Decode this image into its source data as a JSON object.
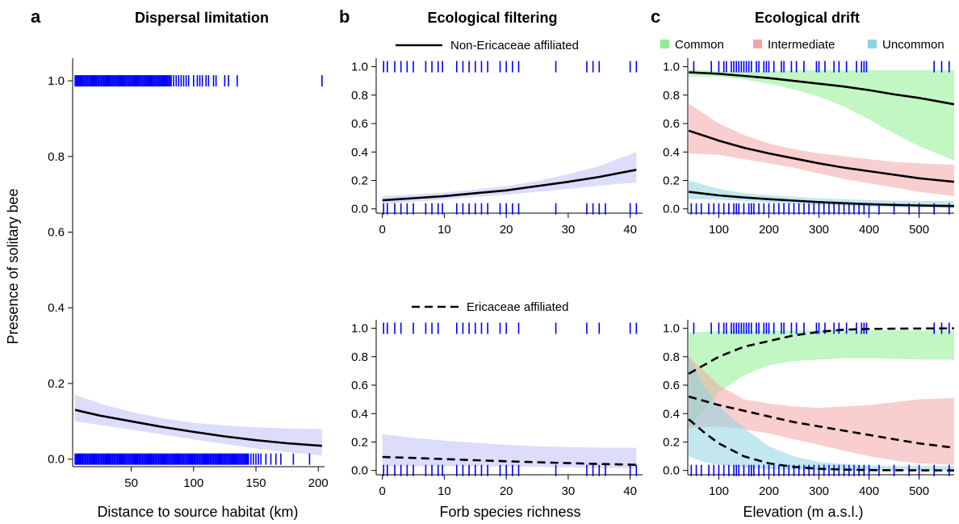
{
  "chart_data": [
    {
      "panel": "a",
      "type": "line",
      "title": "Dispersal limitation",
      "xlabel": "Distance to source habitat (km)",
      "ylabel": "Presence of solitary bee",
      "xlim": [
        3,
        205
      ],
      "ylim": [
        -0.02,
        1.06
      ],
      "xticks": [
        "50",
        "100",
        "150",
        "200"
      ],
      "yticks": [
        "0.0",
        "0.2",
        "0.4",
        "0.6",
        "0.8",
        "1.0"
      ],
      "series": [
        {
          "style": "solid",
          "x": [
            5,
            25,
            50,
            75,
            100,
            125,
            150,
            175,
            203
          ],
          "y": [
            0.13,
            0.115,
            0.1,
            0.085,
            0.072,
            0.06,
            0.05,
            0.042,
            0.035
          ],
          "ci_low": [
            0.1,
            0.09,
            0.078,
            0.065,
            0.052,
            0.04,
            0.028,
            0.018,
            0.01
          ],
          "ci_high": [
            0.17,
            0.147,
            0.125,
            0.108,
            0.096,
            0.089,
            0.084,
            0.081,
            0.08
          ]
        }
      ],
      "rug_top": [
        5,
        6,
        7,
        8,
        9,
        10,
        11,
        12,
        13,
        14,
        15,
        16,
        17,
        18,
        19,
        20,
        21,
        22,
        23,
        24,
        25,
        26,
        27,
        28,
        29,
        30,
        31,
        32,
        33,
        34,
        35,
        36,
        37,
        38,
        39,
        40,
        41,
        42,
        43,
        44,
        45,
        46,
        47,
        48,
        49,
        50,
        51,
        52,
        53,
        54,
        55,
        56,
        57,
        58,
        59,
        60,
        61,
        62,
        63,
        64,
        65,
        66,
        67,
        68,
        69,
        70,
        71,
        72,
        73,
        74,
        75,
        76,
        77,
        78,
        79,
        80,
        81,
        82,
        84,
        86,
        88,
        90,
        92,
        94,
        96,
        100,
        103,
        105,
        107,
        110,
        112,
        116,
        118,
        125,
        128,
        135,
        203
      ],
      "rug_bottom": [
        5,
        6,
        7,
        8,
        9,
        10,
        11,
        12,
        13,
        14,
        15,
        16,
        17,
        18,
        19,
        20,
        21,
        22,
        23,
        24,
        25,
        26,
        27,
        28,
        29,
        30,
        31,
        32,
        33,
        34,
        35,
        36,
        37,
        38,
        39,
        40,
        41,
        42,
        43,
        44,
        45,
        46,
        47,
        48,
        49,
        50,
        51,
        52,
        53,
        54,
        55,
        56,
        57,
        58,
        59,
        60,
        61,
        62,
        63,
        64,
        65,
        66,
        67,
        68,
        69,
        70,
        71,
        72,
        73,
        74,
        75,
        76,
        77,
        78,
        79,
        80,
        81,
        82,
        83,
        84,
        85,
        86,
        87,
        88,
        89,
        90,
        91,
        92,
        93,
        94,
        95,
        96,
        97,
        98,
        99,
        100,
        101,
        102,
        103,
        104,
        105,
        106,
        107,
        108,
        109,
        110,
        111,
        112,
        113,
        114,
        115,
        116,
        117,
        118,
        119,
        120,
        121,
        122,
        123,
        124,
        125,
        126,
        127,
        128,
        129,
        130,
        131,
        132,
        133,
        134,
        135,
        136,
        137,
        138,
        139,
        140,
        141,
        142,
        143,
        144,
        146,
        148,
        150,
        152,
        154,
        158,
        162,
        166,
        170,
        180,
        193
      ]
    },
    {
      "panel": "b",
      "type": "line",
      "title": "Ecological filtering",
      "legend": "Non-Ericaceae affiliated",
      "xlabel": "",
      "ylabel": "",
      "xlim": [
        -1,
        42
      ],
      "ylim": [
        -0.03,
        1.06
      ],
      "xticks": [
        "0",
        "10",
        "20",
        "30",
        "40"
      ],
      "yticks": [
        "0.0",
        "0.2",
        "0.4",
        "0.6",
        "0.8",
        "1.0"
      ],
      "series": [
        {
          "style": "solid",
          "x": [
            0,
            5,
            10,
            15,
            20,
            25,
            30,
            35,
            41
          ],
          "y": [
            0.06,
            0.075,
            0.09,
            0.11,
            0.13,
            0.16,
            0.19,
            0.225,
            0.275
          ],
          "ci_low": [
            0.035,
            0.05,
            0.065,
            0.085,
            0.1,
            0.12,
            0.14,
            0.165,
            0.185
          ],
          "ci_high": [
            0.09,
            0.1,
            0.115,
            0.135,
            0.16,
            0.195,
            0.245,
            0.3,
            0.4
          ]
        }
      ],
      "rug_top": [
        0.2,
        0.8,
        2,
        3,
        4,
        5,
        7,
        8,
        9,
        9.7,
        12,
        13,
        14,
        15,
        16,
        17,
        19,
        20,
        21,
        22,
        28,
        33,
        34,
        35,
        40,
        41
      ],
      "rug_bottom": [
        0.2,
        0.8,
        2,
        3,
        4,
        5,
        7,
        8,
        9,
        9.7,
        12,
        13,
        14,
        15,
        16,
        17,
        19,
        20,
        21,
        22,
        28,
        33,
        34,
        35,
        36,
        40,
        41
      ]
    },
    {
      "panel": "b",
      "type": "line",
      "legend": "Ericaceae affiliated",
      "xlabel": "Forb species richness",
      "ylabel": "",
      "xlim": [
        -1,
        42
      ],
      "ylim": [
        -0.03,
        1.06
      ],
      "xticks": [
        "0",
        "10",
        "20",
        "30",
        "40"
      ],
      "yticks": [
        "0.0",
        "0.2",
        "0.4",
        "0.6",
        "0.8",
        "1.0"
      ],
      "series": [
        {
          "style": "dashed",
          "x": [
            0,
            5,
            10,
            15,
            20,
            25,
            30,
            35,
            41
          ],
          "y": [
            0.095,
            0.088,
            0.08,
            0.072,
            0.065,
            0.058,
            0.052,
            0.046,
            0.04
          ],
          "ci_low": [
            0.03,
            0.03,
            0.03,
            0.03,
            0.028,
            0.025,
            0.022,
            0.018,
            0.015
          ],
          "ci_high": [
            0.255,
            0.23,
            0.21,
            0.195,
            0.18,
            0.17,
            0.165,
            0.16,
            0.16
          ]
        }
      ],
      "rug_top": [
        0.2,
        0.8,
        2,
        3,
        5,
        7,
        8,
        9,
        12,
        13,
        14,
        15,
        16,
        17,
        19,
        20,
        22,
        28,
        33,
        35,
        40,
        41
      ],
      "rug_bottom": [
        0.2,
        0.8,
        2,
        3,
        4,
        5,
        7,
        8,
        9,
        9.7,
        12,
        13,
        14,
        15,
        16,
        17,
        19,
        20,
        21,
        22,
        28,
        33,
        34,
        35,
        36,
        40,
        41
      ]
    },
    {
      "panel": "c",
      "type": "line",
      "title": "Ecological drift",
      "legend": [
        "Common",
        "Intermediate",
        "Uncommon"
      ],
      "xlabel": "",
      "ylabel": "",
      "xlim": [
        38,
        570
      ],
      "ylim": [
        -0.03,
        1.06
      ],
      "xticks": [
        "100",
        "200",
        "300",
        "400",
        "500"
      ],
      "yticks": [
        "0.0",
        "0.2",
        "0.4",
        "0.6",
        "0.8",
        "1.0"
      ],
      "series": [
        {
          "name": "Common",
          "style": "solid",
          "color": "#90ee90",
          "x": [
            40,
            100,
            150,
            200,
            250,
            300,
            350,
            400,
            450,
            500,
            570
          ],
          "y": [
            0.96,
            0.95,
            0.935,
            0.92,
            0.9,
            0.88,
            0.86,
            0.835,
            0.805,
            0.78,
            0.735
          ],
          "ci_low": [
            0.93,
            0.93,
            0.91,
            0.88,
            0.84,
            0.79,
            0.72,
            0.63,
            0.53,
            0.44,
            0.34
          ],
          "ci_high": [
            0.98,
            0.97,
            0.965,
            0.97,
            0.975,
            0.975,
            0.975,
            0.975,
            0.975,
            0.975,
            0.975
          ]
        },
        {
          "name": "Intermediate",
          "style": "solid",
          "color": "#f4a6a6",
          "x": [
            40,
            100,
            150,
            200,
            250,
            300,
            350,
            400,
            450,
            500,
            570
          ],
          "y": [
            0.55,
            0.48,
            0.43,
            0.39,
            0.355,
            0.32,
            0.29,
            0.265,
            0.24,
            0.215,
            0.19
          ],
          "ci_low": [
            0.39,
            0.38,
            0.35,
            0.32,
            0.29,
            0.25,
            0.21,
            0.18,
            0.15,
            0.12,
            0.09
          ],
          "ci_high": [
            0.74,
            0.6,
            0.52,
            0.46,
            0.42,
            0.39,
            0.37,
            0.35,
            0.33,
            0.32,
            0.31
          ]
        },
        {
          "name": "Uncommon",
          "style": "solid",
          "color": "#8fd3e0",
          "x": [
            40,
            100,
            150,
            200,
            250,
            300,
            350,
            400,
            450,
            500,
            570
          ],
          "y": [
            0.12,
            0.095,
            0.08,
            0.068,
            0.058,
            0.048,
            0.04,
            0.033,
            0.028,
            0.024,
            0.02
          ],
          "ci_low": [
            0.07,
            0.065,
            0.055,
            0.045,
            0.035,
            0.028,
            0.022,
            0.016,
            0.012,
            0.008,
            0.005
          ],
          "ci_high": [
            0.2,
            0.14,
            0.11,
            0.095,
            0.085,
            0.075,
            0.068,
            0.062,
            0.058,
            0.056,
            0.055
          ]
        }
      ],
      "rug_top": [
        50,
        85,
        100,
        110,
        115,
        125,
        130,
        135,
        140,
        145,
        150,
        155,
        160,
        165,
        175,
        180,
        190,
        195,
        200,
        210,
        225,
        230,
        245,
        255,
        270,
        295,
        300,
        312,
        330,
        340,
        355,
        375,
        385,
        390,
        395,
        530,
        545,
        560
      ],
      "rug_bottom": [
        45,
        55,
        65,
        80,
        90,
        100,
        110,
        120,
        130,
        135,
        140,
        150,
        160,
        165,
        170,
        180,
        190,
        200,
        210,
        220,
        230,
        240,
        250,
        260,
        270,
        280,
        290,
        300,
        310,
        320,
        330,
        340,
        350,
        360,
        370,
        380,
        390,
        400,
        420,
        450,
        480,
        500,
        530,
        560
      ]
    },
    {
      "panel": "c",
      "type": "line",
      "xlabel": "Elevation (m a.s.l.)",
      "ylabel": "",
      "xlim": [
        38,
        570
      ],
      "ylim": [
        -0.03,
        1.06
      ],
      "xticks": [
        "100",
        "200",
        "300",
        "400",
        "500"
      ],
      "yticks": [
        "0.0",
        "0.2",
        "0.4",
        "0.6",
        "0.8",
        "1.0"
      ],
      "series": [
        {
          "name": "Common",
          "style": "dashed",
          "color": "#90ee90",
          "x": [
            40,
            100,
            150,
            200,
            250,
            300,
            350,
            400,
            450,
            500,
            570
          ],
          "y": [
            0.68,
            0.8,
            0.87,
            0.91,
            0.95,
            0.975,
            0.99,
            0.995,
            0.997,
            0.998,
            0.999
          ],
          "ci_low": [
            0.3,
            0.55,
            0.67,
            0.74,
            0.77,
            0.78,
            0.79,
            0.79,
            0.785,
            0.78,
            0.78
          ],
          "ci_high": [
            0.97,
            0.98,
            0.985,
            0.985,
            0.985,
            0.985,
            0.985,
            0.985,
            0.985,
            0.985,
            0.985
          ]
        },
        {
          "name": "Intermediate",
          "style": "dashed",
          "color": "#f4a6a6",
          "x": [
            40,
            100,
            150,
            200,
            250,
            300,
            350,
            400,
            450,
            500,
            570
          ],
          "y": [
            0.52,
            0.46,
            0.42,
            0.38,
            0.34,
            0.31,
            0.28,
            0.25,
            0.22,
            0.19,
            0.16
          ],
          "ci_low": [
            0.3,
            0.31,
            0.29,
            0.26,
            0.22,
            0.18,
            0.14,
            0.1,
            0.07,
            0.05,
            0.04
          ],
          "ci_high": [
            0.8,
            0.6,
            0.5,
            0.47,
            0.45,
            0.44,
            0.45,
            0.46,
            0.48,
            0.5,
            0.51
          ]
        },
        {
          "name": "Uncommon",
          "style": "dashed",
          "color": "#8fd3e0",
          "x": [
            40,
            70,
            100,
            150,
            200,
            250,
            300,
            350,
            400,
            450,
            500,
            570
          ],
          "y": [
            0.36,
            0.27,
            0.19,
            0.1,
            0.05,
            0.025,
            0.012,
            0.006,
            0.003,
            0.002,
            0.001,
            0.0
          ],
          "ci_low": [
            0.1,
            0.06,
            0.04,
            0.02,
            0.01,
            0.005,
            0.002,
            0.001,
            0.0,
            0.0,
            0.0,
            0.0
          ],
          "ci_high": [
            0.8,
            0.6,
            0.45,
            0.3,
            0.17,
            0.1,
            0.06,
            0.045,
            0.035,
            0.03,
            0.03,
            0.03
          ]
        }
      ],
      "rug_top": [
        50,
        85,
        100,
        110,
        115,
        125,
        130,
        135,
        140,
        145,
        150,
        155,
        160,
        165,
        175,
        180,
        190,
        195,
        200,
        210,
        225,
        230,
        245,
        255,
        270,
        295,
        300,
        312,
        330,
        340,
        355,
        375,
        385,
        390,
        395,
        530,
        545,
        560
      ],
      "rug_bottom": [
        45,
        55,
        65,
        80,
        90,
        100,
        110,
        120,
        130,
        135,
        140,
        150,
        160,
        165,
        170,
        180,
        190,
        200,
        210,
        220,
        230,
        240,
        250,
        260,
        270,
        280,
        290,
        300,
        310,
        320,
        330,
        340,
        350,
        360,
        370,
        380,
        390,
        400,
        420,
        450,
        480,
        500,
        530,
        560
      ]
    }
  ],
  "panel_letters": [
    "a",
    "b",
    "c"
  ]
}
